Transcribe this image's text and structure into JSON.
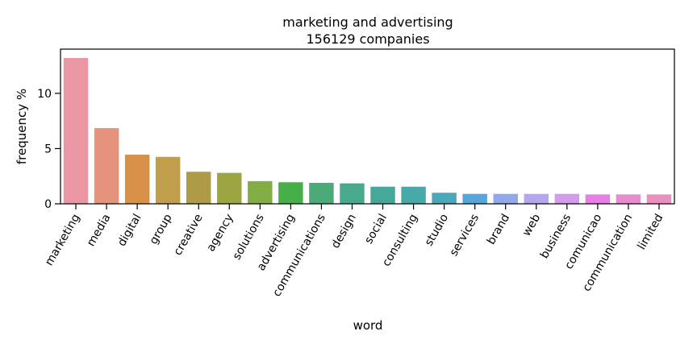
{
  "chart_data": {
    "type": "bar",
    "title": "marketing and advertising",
    "subtitle": "156129 companies",
    "xlabel": "word",
    "ylabel": "frequency %",
    "ylim": [
      0,
      14
    ],
    "yticks": [
      0,
      5,
      10
    ],
    "grid": false,
    "categories": [
      "marketing",
      "media",
      "digital",
      "group",
      "creative",
      "agency",
      "solutions",
      "advertising",
      "communications",
      "design",
      "social",
      "consulting",
      "studio",
      "services",
      "brand",
      "web",
      "business",
      "comunicao",
      "communication",
      "limited"
    ],
    "values": [
      13.2,
      6.85,
      4.45,
      4.25,
      2.9,
      2.8,
      2.05,
      1.95,
      1.9,
      1.85,
      1.55,
      1.55,
      1.0,
      0.9,
      0.9,
      0.9,
      0.9,
      0.85,
      0.85,
      0.85
    ],
    "colors": [
      "#ea96a3",
      "#e5937a",
      "#d9914a",
      "#c19e4b",
      "#ae9c48",
      "#9ca642",
      "#82ad45",
      "#46af4a",
      "#4aab78",
      "#48a98c",
      "#47a89a",
      "#49a8a8",
      "#4aa8b8",
      "#55a7d9",
      "#91a9ea",
      "#b5a6f0",
      "#d49bea",
      "#e87fe4",
      "#e98bcf",
      "#ea8fbe"
    ]
  }
}
